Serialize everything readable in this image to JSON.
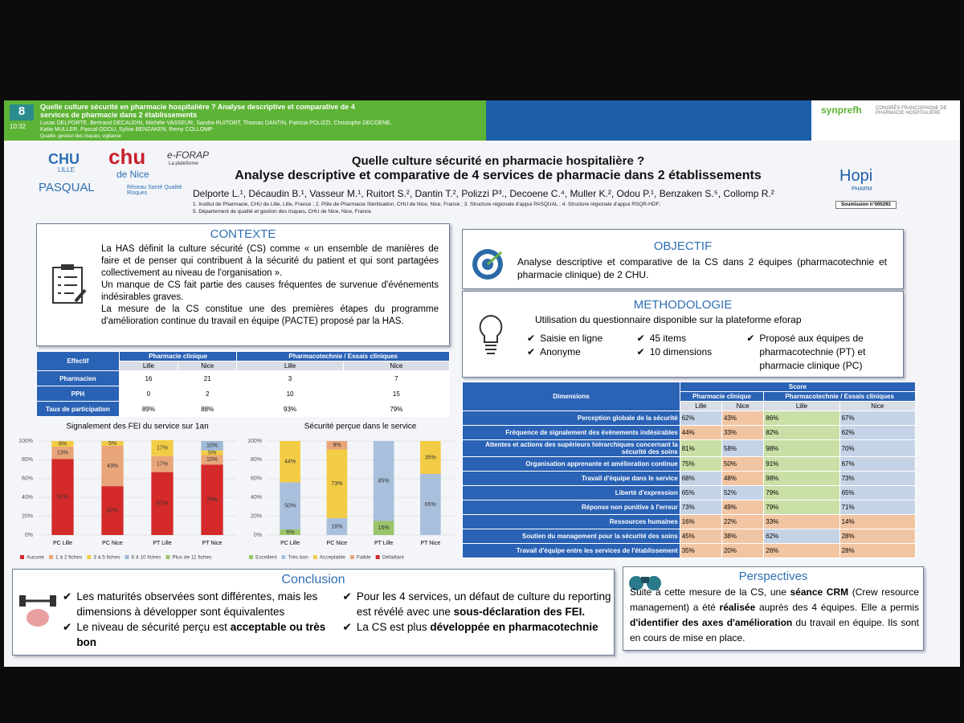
{
  "header": {
    "number": "8",
    "time": "10:32",
    "title": "Quelle culture sécurité en pharmacie hospitalière ? Analyse descriptive et comparative de 4 services de pharmacie dans 2 établissements",
    "authors": "Lucas DELPORTE, Bertrand DECAUDIN, Michèle VASSEUR, Sandra RUITORT, Thomas DANTIN, Patricia POLIZZI, Christophe DECOENE, Katia MULLER, Pascal ODOU, Sylvia BENZAKEN, Remy COLLOMP",
    "theme": "Qualité, gestion des risques, vigilance",
    "congress": "CONGRÈS FRANCOPHONE DE PHARMACIE HOSPITALIÈRE",
    "brand": "synprefh"
  },
  "logos": {
    "chu_lille": "CHU",
    "lille": "LILLE",
    "pasqual": "PASQUAL",
    "chu_nice": "chu",
    "de_nice": "de Nice",
    "eforap": "e-FORAP",
    "plateforme": "La plateforme",
    "reseau": "Réseau Santé Qualité Risques",
    "hopipharm": "Hopi",
    "pharm": "PHARM"
  },
  "poster": {
    "title_line1": "Quelle culture sécurité en pharmacie hospitalière ?",
    "title_line2": "Analyse descriptive et comparative de 4 services de pharmacie dans 2 établissements",
    "authors": "Delporte L.¹, Décaudin B.¹, Vasseur M.¹, Ruitort S.², Dantin T.², Polizzi P³., Decoene C.⁴, Muller K.², Odou P.¹, Benzaken S.⁵, Collomp R.²",
    "affiliations": [
      "1. Institut de Pharmacie, CHU de Lille, Lille, France ; 2. Pôle de Pharmacie Stérilisation, CHU de Nice, Nice, France ; 3. Structure régionale d'appui PASQUAL ; 4. Structure régionale d'appui RSQR-HDF;",
      "5. Département de qualité et gestion des risques, CHU de Nice, Nice, France"
    ],
    "submission": "Soumission n°000293"
  },
  "contexte": {
    "heading": "CONTEXTE",
    "paragraphs": [
      "La HAS définit la culture sécurité (CS) comme « un ensemble de manières de faire et de penser qui contribuent à la sécurité du patient et qui sont partagées collectivement au niveau de l'organisation ».",
      "Un manque de CS fait partie des causes fréquentes de survenue d'événements indésirables graves.",
      "La mesure de la CS constitue une des premières étapes du programme d'amélioration continue du travail en équipe (PACTE) proposé par la HAS."
    ]
  },
  "effectif_table": {
    "corner": "Effectif",
    "groups": [
      "Pharmacie clinique",
      "Pharmacotechnie / Essais cliniques"
    ],
    "sub": [
      "Lille",
      "Nice",
      "Lille",
      "Nice"
    ],
    "rows": [
      [
        "Pharmacien",
        "16",
        "21",
        "3",
        "7"
      ],
      [
        "PPH",
        "0",
        "2",
        "10",
        "15"
      ],
      [
        "Taux de participation",
        "89%",
        "88%",
        "93%",
        "79%"
      ]
    ]
  },
  "chart_data": [
    {
      "type": "stacked_bar",
      "title": "Signalement des FEI du service sur 1an",
      "categories": [
        "PC Lille",
        "PC Nice",
        "PT Lille",
        "PT Nice"
      ],
      "series": [
        {
          "name": "Aucune",
          "color": "#d42a2a",
          "values": [
            81,
            52,
            67,
            75
          ],
          "value_labels": [
            "81%",
            "52%",
            "67%",
            "75%"
          ]
        },
        {
          "name": "1 à 2 fiches",
          "color": "#e9a57a",
          "values": [
            13,
            43,
            17,
            10
          ],
          "value_labels": [
            "13%",
            "43%",
            "17%",
            "10%"
          ]
        },
        {
          "name": "3 à 5 fiches",
          "color": "#f3cc45",
          "values": [
            6,
            5,
            17,
            5
          ],
          "value_labels": [
            "6%",
            "5%",
            "17%",
            "5%"
          ]
        },
        {
          "name": "6 à 10 fiches",
          "color": "#9fb8d6",
          "values": [
            0,
            0,
            0,
            10
          ],
          "value_labels": [
            null,
            null,
            null,
            "10%"
          ]
        },
        {
          "name": "Plus de 11 fiches",
          "color": "#9cc46a",
          "values": [
            0,
            0,
            0,
            0
          ],
          "value_labels": [
            null,
            null,
            null,
            null
          ]
        }
      ],
      "ylim": [
        0,
        100
      ],
      "yticks": [
        {
          "value": 0,
          "label": "0%"
        },
        {
          "value": 20,
          "label": "20%"
        },
        {
          "value": 40,
          "label": "40%"
        },
        {
          "value": 60,
          "label": "60%"
        },
        {
          "value": 80,
          "label": "80%"
        },
        {
          "value": 100,
          "label": "100%"
        }
      ]
    },
    {
      "type": "stacked_bar",
      "title": "Sécurité perçue dans le service",
      "categories": [
        "PC Lille",
        "PC Nice",
        "PT Lille",
        "PT Nice"
      ],
      "series": [
        {
          "name": "Excellent",
          "color": "#9cc46a",
          "values": [
            6,
            0,
            15,
            0
          ],
          "value_labels": [
            "6%",
            null,
            "15%",
            null
          ]
        },
        {
          "name": "Très bon",
          "color": "#a9c0dc",
          "values": [
            50,
            18,
            85,
            65
          ],
          "value_labels": [
            "50%",
            "18%",
            "85%",
            "65%"
          ]
        },
        {
          "name": "Acceptable",
          "color": "#f3cc45",
          "values": [
            44,
            73,
            0,
            35
          ],
          "value_labels": [
            "44%",
            "73%",
            null,
            "35%"
          ]
        },
        {
          "name": "Faible",
          "color": "#e9a57a",
          "values": [
            0,
            9,
            0,
            0
          ],
          "value_labels": [
            null,
            "9%",
            null,
            null
          ]
        },
        {
          "name": "Défaillant",
          "color": "#d42a2a",
          "values": [
            0,
            0,
            0,
            0
          ],
          "value_labels": [
            null,
            null,
            null,
            null
          ]
        }
      ],
      "ylim": [
        0,
        100
      ],
      "yticks": [
        {
          "value": 0,
          "label": "0%"
        },
        {
          "value": 20,
          "label": "20%"
        },
        {
          "value": 40,
          "label": "40%"
        },
        {
          "value": 60,
          "label": "60%"
        },
        {
          "value": 80,
          "label": "80%"
        },
        {
          "value": 100,
          "label": "100%"
        }
      ]
    }
  ],
  "objectif": {
    "heading": "OBJECTIF",
    "text": "Analyse descriptive et comparative de la CS dans 2 équipes (pharmacotechnie et pharmacie clinique) de 2 CHU."
  },
  "methodologie": {
    "heading": "METHODOLOGIE",
    "intro": "Utilisation du questionnaire disponible sur la plateforme eforap",
    "columns": [
      [
        "Saisie en ligne",
        "Anonyme"
      ],
      [
        "45 items",
        "10 dimensions"
      ],
      [
        "Proposé aux équipes de pharmacotechnie (PT) et pharmacie clinique (PC)"
      ]
    ]
  },
  "dimensions_table": {
    "corner": "Dimensions",
    "score": "Score",
    "groups": [
      "Pharmacie clinique",
      "Pharmacotechnie / Essais cliniques"
    ],
    "sub": [
      "Lille",
      "Nice",
      "Lille",
      "Nice"
    ],
    "rows": [
      [
        "Perception globale de la sécurité",
        "62%",
        "43%",
        "86%",
        "67%"
      ],
      [
        "Fréquence de signalement des évènements indésirables",
        "44%",
        "33%",
        "82%",
        "62%"
      ],
      [
        "Attentes et actions des supérieurs hiérarchiques concernant la sécurité des soins",
        "81%",
        "58%",
        "98%",
        "70%"
      ],
      [
        "Organisation apprenante et amélioration continue",
        "75%",
        "50%",
        "91%",
        "67%"
      ],
      [
        "Travail d'équipe dans le service",
        "68%",
        "48%",
        "98%",
        "73%"
      ],
      [
        "Liberté d'expression",
        "65%",
        "52%",
        "79%",
        "65%"
      ],
      [
        "Réponse non punitive à l'erreur",
        "73%",
        "49%",
        "79%",
        "71%"
      ],
      [
        "Ressources humaines",
        "16%",
        "22%",
        "33%",
        "14%"
      ],
      [
        "Soutien du management pour la sécurité des soins",
        "45%",
        "38%",
        "62%",
        "28%"
      ],
      [
        "Travail d'équipe entre les services de l'établissement",
        "35%",
        "20%",
        "26%",
        "28%"
      ]
    ]
  },
  "conclusion": {
    "heading": "Conclusion",
    "columns": [
      [
        [
          "Les maturités observées sont différentes, mais les dimensions à développer sont équivalentes"
        ],
        [
          "Le niveau de sécurité perçu est ",
          "acceptable ou très bon"
        ]
      ],
      [
        [
          "Pour les 4 services, un défaut de culture du reporting est révélé avec une ",
          "sous-déclaration des FEI."
        ],
        [
          "La CS est plus ",
          "développée en pharmacotechnie"
        ]
      ]
    ]
  },
  "perspectives": {
    "heading": "Perspectives",
    "text": [
      "Suite à cette mesure de la CS, une ",
      "séance CRM",
      " (Crew resource management) a été ",
      "réalisée",
      " auprès des 4 équipes. Elle a permis ",
      "d'identifier des axes d'amélioration",
      " du travail en équipe. Ils sont en cours de mise en place."
    ]
  }
}
